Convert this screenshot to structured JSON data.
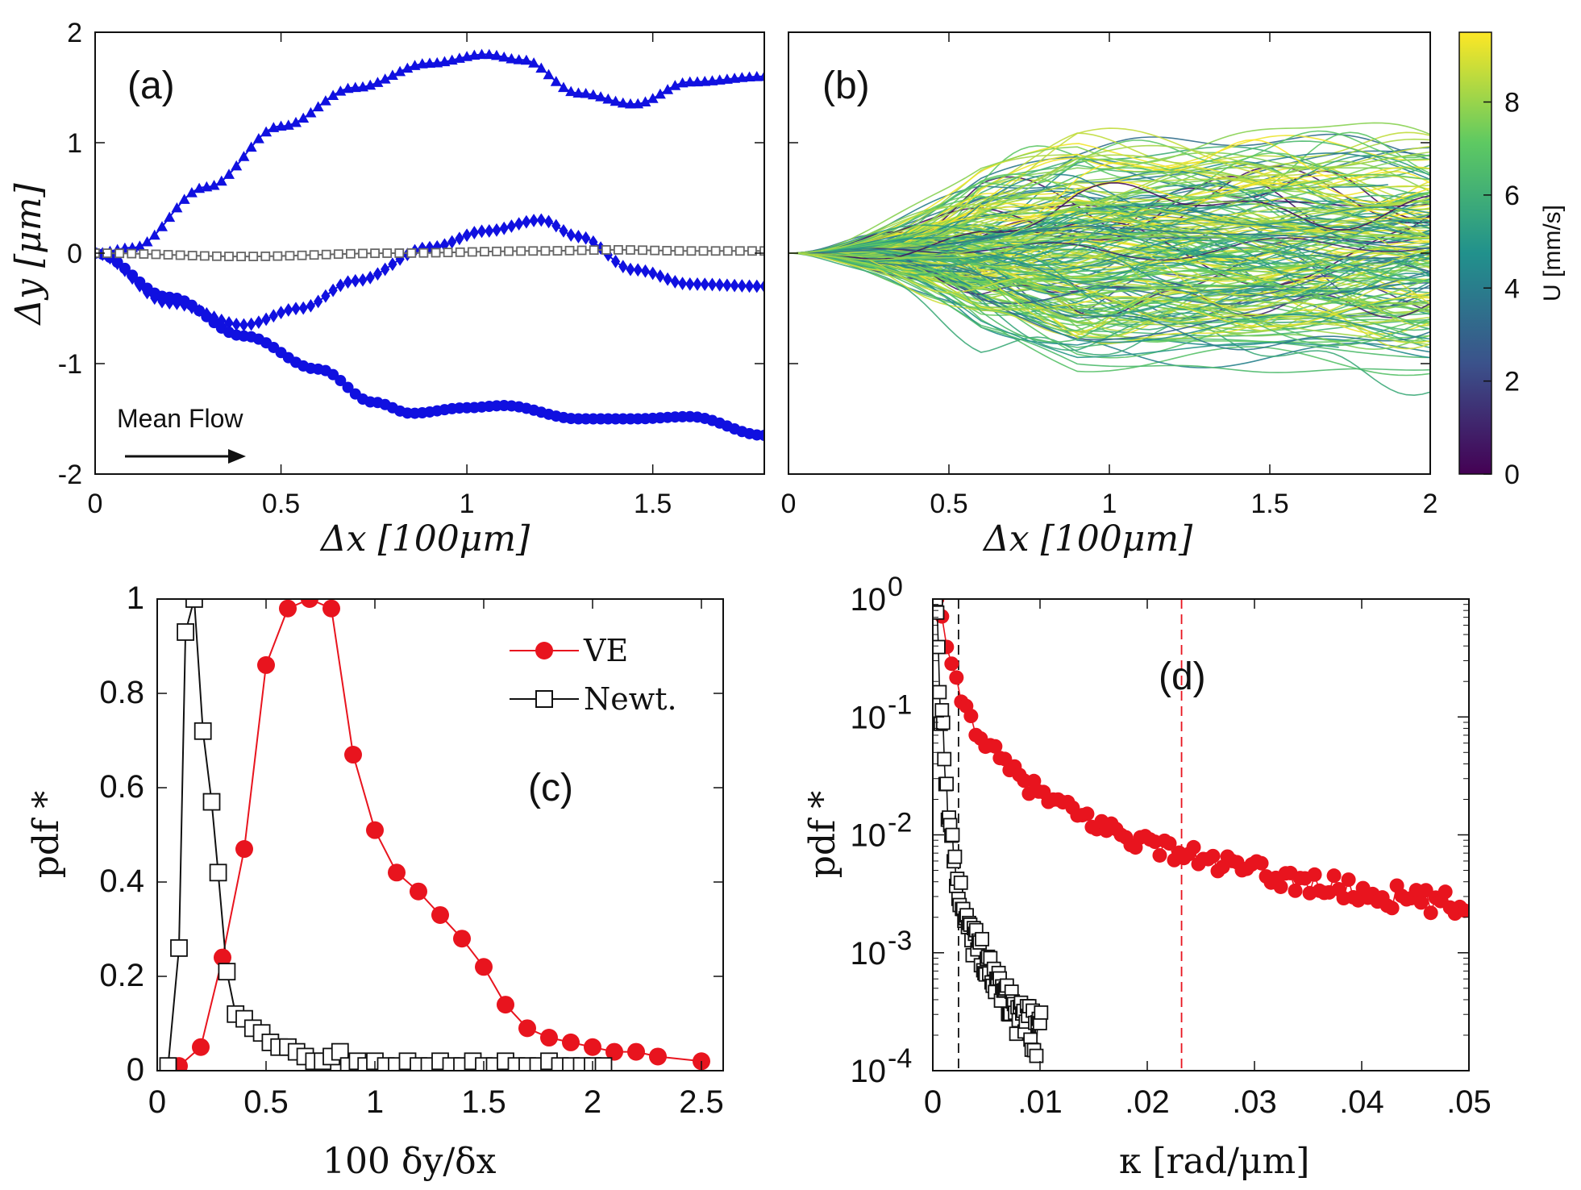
{
  "chart_data": [
    {
      "id": "a",
      "panel_label": "(a)",
      "type": "line",
      "xlabel": "Δx [100μm]",
      "ylabel": "Δy [μm]",
      "xlim": [
        0,
        1.8
      ],
      "ylim": [
        -2,
        2
      ],
      "xticks": [
        "0",
        "0.5",
        "1",
        "1.5"
      ],
      "xtick_values": [
        0,
        0.5,
        1,
        1.5
      ],
      "yticks": [
        "-2",
        "-1",
        "0",
        "1",
        "2"
      ],
      "ytick_values": [
        -2,
        -1,
        0,
        1,
        2
      ],
      "annotation": "Mean Flow",
      "series": [
        {
          "name": "triangle trajectory",
          "marker": "triangle",
          "color": "#1010e0",
          "knots_x": [
            0,
            0.1,
            0.3,
            0.5,
            0.7,
            0.9,
            1.05,
            1.15,
            1.3,
            1.45,
            1.6,
            1.8
          ],
          "knots_y": [
            0,
            0.05,
            0.6,
            1.15,
            1.5,
            1.72,
            1.8,
            1.75,
            1.45,
            1.35,
            1.55,
            1.6
          ]
        },
        {
          "name": "diamond trajectory",
          "marker": "diamond",
          "color": "#1010e0",
          "knots_x": [
            0,
            0.2,
            0.4,
            0.55,
            0.7,
            0.9,
            1.05,
            1.2,
            1.3,
            1.45,
            1.6,
            1.8
          ],
          "knots_y": [
            0,
            -0.45,
            -0.65,
            -0.5,
            -0.25,
            0.05,
            0.2,
            0.3,
            0.15,
            -0.15,
            -0.28,
            -0.3
          ]
        },
        {
          "name": "circle trajectory",
          "marker": "circle",
          "color": "#1010e0",
          "knots_x": [
            0,
            0.2,
            0.4,
            0.6,
            0.75,
            0.85,
            1.0,
            1.1,
            1.3,
            1.45,
            1.6,
            1.8
          ],
          "knots_y": [
            0,
            -0.4,
            -0.75,
            -1.05,
            -1.35,
            -1.45,
            -1.4,
            -1.38,
            -1.5,
            -1.5,
            -1.48,
            -1.65
          ]
        },
        {
          "name": "square trajectory",
          "marker": "square",
          "color": "#666666",
          "knots_x": [
            0,
            0.4,
            0.8,
            1.2,
            1.4,
            1.6,
            1.8
          ],
          "knots_y": [
            0,
            -0.03,
            0.0,
            0.02,
            0.03,
            0.02,
            0.02
          ]
        }
      ]
    },
    {
      "id": "b",
      "panel_label": "(b)",
      "type": "line",
      "xlabel": "Δx [100μm]",
      "xlim": [
        0,
        2
      ],
      "ylim": [
        -2,
        2
      ],
      "xticks": [
        "0",
        "0.5",
        "1",
        "1.5",
        "2"
      ],
      "xtick_values": [
        0,
        0.5,
        1,
        1.5,
        2
      ],
      "trajectory_count": 220,
      "trajectory_y_spread": 1.1,
      "colorbar": {
        "label": "U [mm/s]",
        "min": 0,
        "max": 9.5,
        "ticks": [
          "0",
          "2",
          "4",
          "6",
          "8"
        ],
        "tick_values": [
          0,
          2,
          4,
          6,
          8
        ],
        "colormap": [
          "#440154",
          "#3b528b",
          "#21918c",
          "#5ec962",
          "#fde725"
        ]
      }
    },
    {
      "id": "c",
      "panel_label": "(c)",
      "type": "line",
      "xlabel": "100 δy/δx",
      "ylabel": "pdf *",
      "xlim": [
        0,
        2.6
      ],
      "ylim": [
        0,
        1.0
      ],
      "xticks": [
        "0",
        "0.5",
        "1",
        "1.5",
        "2",
        "2.5"
      ],
      "xtick_values": [
        0,
        0.5,
        1,
        1.5,
        2,
        2.5
      ],
      "yticks": [
        "0",
        "0.2",
        "0.4",
        "0.6",
        "0.8",
        "1"
      ],
      "ytick_values": [
        0,
        0.2,
        0.4,
        0.6,
        0.8,
        1.0
      ],
      "series": [
        {
          "name": "VE",
          "marker": "circle",
          "color": "#e8141e",
          "x": [
            0.1,
            0.2,
            0.3,
            0.4,
            0.5,
            0.6,
            0.7,
            0.8,
            0.9,
            1.0,
            1.1,
            1.2,
            1.3,
            1.4,
            1.5,
            1.6,
            1.7,
            1.8,
            1.9,
            2.0,
            2.1,
            2.2,
            2.3,
            2.5
          ],
          "y": [
            0.01,
            0.05,
            0.24,
            0.47,
            0.86,
            0.98,
            1.0,
            0.98,
            0.67,
            0.51,
            0.42,
            0.38,
            0.33,
            0.28,
            0.22,
            0.14,
            0.09,
            0.07,
            0.06,
            0.05,
            0.04,
            0.04,
            0.03,
            0.02
          ]
        },
        {
          "name": "Newt.",
          "marker": "square",
          "color": "#111111",
          "x": [
            0.05,
            0.1,
            0.13,
            0.17,
            0.21,
            0.25,
            0.28,
            0.32,
            0.36,
            0.4,
            0.44,
            0.48,
            0.52,
            0.56,
            0.6,
            0.64,
            0.68,
            0.72,
            0.76,
            0.8,
            0.84,
            0.88,
            0.92,
            0.96,
            1.0,
            1.05,
            1.1,
            1.15,
            1.2,
            1.25,
            1.3,
            1.35,
            1.4,
            1.45,
            1.5,
            1.55,
            1.6,
            1.65,
            1.7,
            1.75,
            1.8,
            1.85,
            1.9,
            1.95,
            2.0,
            2.05
          ],
          "y": [
            0.01,
            0.26,
            0.93,
            1.0,
            0.72,
            0.57,
            0.42,
            0.21,
            0.12,
            0.11,
            0.09,
            0.08,
            0.06,
            0.05,
            0.05,
            0.04,
            0.03,
            0.02,
            0.02,
            0.03,
            0.04,
            0.01,
            0.02,
            0.01,
            0.02,
            0.01,
            0.01,
            0.02,
            0.01,
            0.01,
            0.02,
            0.01,
            0.01,
            0.02,
            0.01,
            0.01,
            0.02,
            0.01,
            0.01,
            0.01,
            0.02,
            0.01,
            0.01,
            0.01,
            0.01,
            0.01
          ]
        }
      ]
    },
    {
      "id": "d",
      "panel_label": "(d)",
      "type": "scatter",
      "yscale": "log",
      "xlabel": "κ [rad/μm]",
      "ylabel": "pdf *",
      "xlim": [
        0,
        0.05
      ],
      "ylim": [
        0.0001,
        1
      ],
      "xticks": [
        "0",
        ".01",
        ".02",
        ".03",
        ".04",
        ".05"
      ],
      "xtick_values": [
        0,
        0.01,
        0.02,
        0.03,
        0.04,
        0.05
      ],
      "yticks": [
        "10",
        "10",
        "10",
        "10",
        "10"
      ],
      "ytick_exponents": [
        "0",
        "-1",
        "-2",
        "-3",
        "-4"
      ],
      "ytick_values": [
        1,
        0.1,
        0.01,
        0.001,
        0.0001
      ],
      "vlines": [
        {
          "x": 0.0024,
          "color": "#111111",
          "style": "dashed"
        },
        {
          "x": 0.0232,
          "color": "#e8141e",
          "style": "dashed"
        }
      ],
      "series": [
        {
          "name": "VE",
          "marker": "circle",
          "color": "#e8141e",
          "x_start": 0.0004,
          "x_end": 0.0496,
          "count": 110,
          "law": "power",
          "amp": 3.584e-05,
          "exp": -1.4,
          "noise": 0.12
        },
        {
          "name": "Newt.",
          "marker": "square",
          "color": "#111111",
          "x_start": 0.0003,
          "x_end": 0.0101,
          "count": 90,
          "law": "decay",
          "knots_x": [
            0.0003,
            0.0008,
            0.0015,
            0.0025,
            0.004,
            0.006,
            0.008,
            0.0101
          ],
          "knots_y": [
            1.0,
            0.1,
            0.015,
            0.003,
            0.0012,
            0.0006,
            0.0003,
            0.0002
          ],
          "noise": 0.2
        }
      ]
    }
  ],
  "legend": {
    "ve_label": "VE",
    "newt_label": "Newt."
  }
}
